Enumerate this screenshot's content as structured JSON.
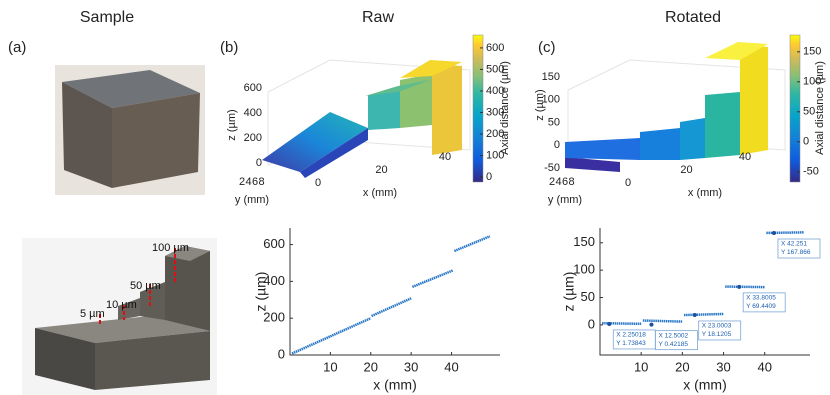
{
  "headers": [
    "Sample",
    "Raw",
    "Rotated"
  ],
  "panel_labels": [
    "(a)",
    "(b)",
    "(c)"
  ],
  "sample_annotations": [
    "100 µm",
    "50 µm",
    "10 µm",
    "5 µm"
  ],
  "surface_plots": [
    {
      "zlabel": "z (µm)",
      "xlabel": "x (mm)",
      "ylabel": "y (mm)",
      "zticks": [
        0,
        200,
        400,
        600
      ],
      "xticks": [
        0,
        20,
        40
      ],
      "yticks": [
        2,
        4,
        6,
        8
      ],
      "colorbar_label": "Axial distance (µm)",
      "clim": [
        -23,
        660
      ],
      "colorbar_ticks": [
        0,
        100,
        200,
        300,
        400,
        500,
        600
      ]
    },
    {
      "zlabel": "z (µm)",
      "xlabel": "x (mm)",
      "ylabel": "y (mm)",
      "zticks": [
        -50,
        0,
        50,
        100,
        150
      ],
      "xticks": [
        0,
        20,
        40
      ],
      "yticks": [
        2,
        4,
        6,
        8
      ],
      "colorbar_label": "Axial distance (µm)",
      "clim": [
        -67,
        178
      ],
      "colorbar_ticks": [
        -50,
        0,
        50,
        100,
        150
      ]
    }
  ],
  "chart_data": [
    {
      "type": "line",
      "xlabel": "x (mm)",
      "ylabel": "z (µm)",
      "xlim": [
        0,
        52
      ],
      "ylim": [
        0,
        690
      ],
      "xticks": [
        10,
        20,
        30,
        40
      ],
      "yticks": [
        0,
        200,
        400,
        600
      ],
      "x": [
        0.5,
        20,
        20.1,
        20.2,
        30,
        30.1,
        30.3,
        40.4,
        40.5,
        40.7,
        49.5
      ],
      "series": [
        {
          "color": "#2a78c8",
          "values": [
            8,
            200,
            null,
            212,
            308,
            null,
            370,
            460,
            null,
            565,
            645
          ]
        }
      ],
      "annotations": []
    },
    {
      "type": "line",
      "xlabel": "x (mm)",
      "ylabel": "z (µm)",
      "xlim": [
        0,
        51
      ],
      "ylim": [
        -55,
        177
      ],
      "xticks": [
        10,
        20,
        30,
        40
      ],
      "yticks": [
        0,
        50,
        100,
        150
      ],
      "x": [
        0.5,
        10,
        10.2,
        10.4,
        20,
        20.2,
        20.4,
        30,
        30.2,
        30.4,
        40,
        40.2,
        40.4,
        49.5
      ],
      "series": [
        {
          "color": "#2a78c8",
          "values": [
            3,
            2,
            null,
            8,
            6,
            null,
            18,
            20,
            null,
            70,
            69,
            null,
            168,
            169
          ]
        }
      ],
      "annotations": [
        {
          "x": 2.25018,
          "y": 1.73843,
          "label": [
            "X 2.25018",
            "Y 1.73843"
          ]
        },
        {
          "x": 12.5002,
          "y": 0.42185,
          "label": [
            "X 12.5002",
            "Y 0.42185"
          ]
        },
        {
          "x": 23.0003,
          "y": 18.1205,
          "label": [
            "X 23.0003",
            "Y 18.1205"
          ]
        },
        {
          "x": 33.8005,
          "y": 69.4409,
          "label": [
            "X 33.8005",
            "Y 69.4409"
          ]
        },
        {
          "x": 42.251,
          "y": 167.866,
          "label": [
            "X 42.251",
            "Y 167.866"
          ]
        }
      ]
    }
  ]
}
